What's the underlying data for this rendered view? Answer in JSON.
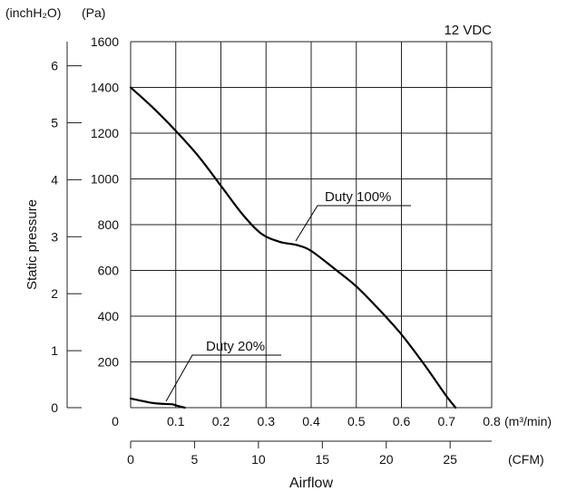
{
  "chart_data": {
    "type": "line",
    "note": "12 VDC",
    "ylabel": "Static pressure",
    "xlabel": "Airflow",
    "y_unit_left": "(inchH₂O)",
    "y_unit_right": "(Pa)",
    "x_unit_main": "(m³/min)",
    "x_unit_secondary": "(CFM)",
    "xlim": [
      0,
      0.8
    ],
    "ylim": [
      0,
      1600
    ],
    "grid": true,
    "x_ticks": [
      "0",
      "0.1",
      "0.2",
      "0.3",
      "0.4",
      "0.5",
      "0.6",
      "0.7",
      "0.8"
    ],
    "y_ticks_pa": [
      "200",
      "400",
      "600",
      "800",
      "1000",
      "1200",
      "1400",
      "1600"
    ],
    "y_ticks_inch": [
      "0",
      "1",
      "2",
      "3",
      "4",
      "5",
      "6"
    ],
    "cfm_ticks": [
      "0",
      "5",
      "10",
      "15",
      "20",
      "25"
    ],
    "series": [
      {
        "name": "Duty 100%",
        "x": [
          0,
          0.05,
          0.1,
          0.15,
          0.2,
          0.25,
          0.29,
          0.33,
          0.37,
          0.4,
          0.45,
          0.5,
          0.55,
          0.6,
          0.65,
          0.7,
          0.72
        ],
        "y": [
          1400,
          1310,
          1210,
          1100,
          970,
          840,
          760,
          725,
          710,
          685,
          610,
          530,
          430,
          320,
          190,
          50,
          0
        ]
      },
      {
        "name": "Duty 20%",
        "x": [
          0,
          0.05,
          0.09,
          0.1,
          0.12
        ],
        "y": [
          40,
          20,
          15,
          10,
          0
        ]
      }
    ]
  }
}
